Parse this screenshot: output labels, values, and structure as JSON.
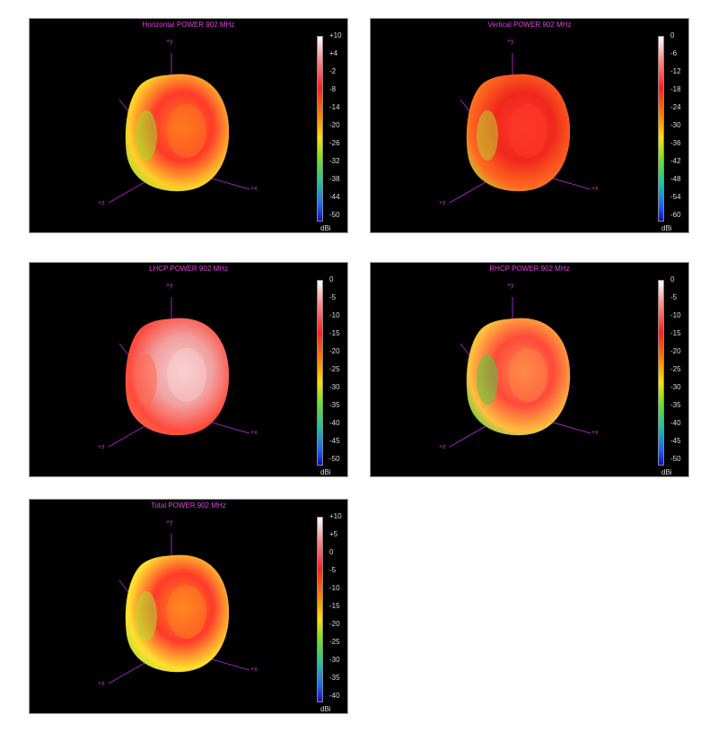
{
  "chart_data": [
    {
      "type": "other",
      "title": "Horizontal POWER 902  MHz",
      "colorbar": {
        "ticks": [
          "+10",
          "+4",
          "-2",
          "-8",
          "-14",
          "-20",
          "-26",
          "-32",
          "-38",
          "-44",
          "-50"
        ],
        "range": [
          -50,
          10
        ],
        "unit": "dBi"
      },
      "axes": {
        "y": "+y",
        "x": "+x",
        "z": "+z"
      },
      "palette": [
        "#ff3a2a",
        "#ff7a1e",
        "#ffd02a",
        "#9fe02a"
      ]
    },
    {
      "type": "other",
      "title": "Vertical POWER 902  MHz",
      "colorbar": {
        "ticks": [
          "0",
          "-6",
          "-12",
          "-18",
          "-24",
          "-30",
          "-36",
          "-42",
          "-48",
          "-54",
          "-60"
        ],
        "range": [
          -60,
          0
        ],
        "unit": "dBi"
      },
      "axes": {
        "y": "+y",
        "x": "+x",
        "z": "+z"
      },
      "palette": [
        "#f0281c",
        "#ff3a2a",
        "#ff6a20",
        "#c0d030"
      ]
    },
    {
      "type": "other",
      "title": "LHCP POWER 902  MHz",
      "colorbar": {
        "ticks": [
          "0",
          "-5",
          "-10",
          "-15",
          "-20",
          "-25",
          "-30",
          "-35",
          "-40",
          "-45",
          "-50"
        ],
        "range": [
          -50,
          0
        ],
        "unit": "dBi"
      },
      "axes": {
        "y": "+y",
        "x": "+x",
        "z": "+z"
      },
      "palette": [
        "#f0a0a0",
        "#f8d0d0",
        "#ff4a3a",
        "#ff6a50"
      ]
    },
    {
      "type": "other",
      "title": "RHCP POWER 902  MHz",
      "colorbar": {
        "ticks": [
          "0",
          "-5",
          "-10",
          "-15",
          "-20",
          "-25",
          "-30",
          "-35",
          "-40",
          "-45",
          "-50"
        ],
        "range": [
          -50,
          0
        ],
        "unit": "dBi"
      },
      "axes": {
        "y": "+y",
        "x": "+x",
        "z": "+z"
      },
      "palette": [
        "#ff4a3a",
        "#ff8a4a",
        "#ffc040",
        "#50d040"
      ]
    },
    {
      "type": "other",
      "title": "Total POWER 902  MHz",
      "colorbar": {
        "ticks": [
          "+10",
          "+5",
          "0",
          "-5",
          "-10",
          "-15",
          "-20",
          "-25",
          "-30",
          "-35",
          "-40"
        ],
        "range": [
          -40,
          10
        ],
        "unit": "dBi"
      },
      "axes": {
        "y": "+y",
        "x": "+x",
        "z": "+z"
      },
      "palette": [
        "#ff3a2a",
        "#ff8a1e",
        "#ffe030",
        "#b0e030"
      ]
    }
  ]
}
